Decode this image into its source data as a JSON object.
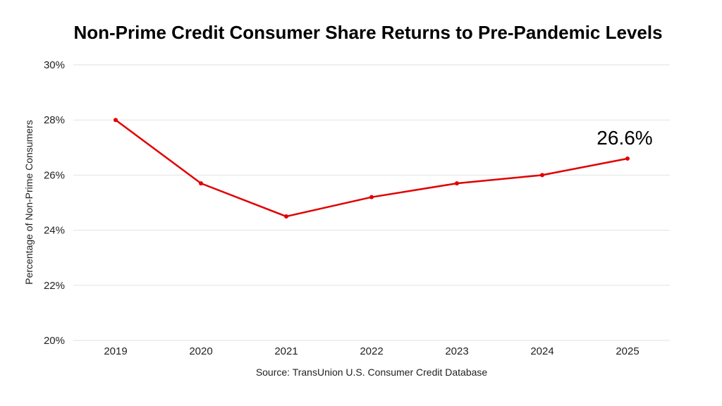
{
  "chart_data": {
    "type": "line",
    "title": "Non-Prime Credit Consumer Share Returns to Pre-Pandemic Levels",
    "xlabel": "",
    "ylabel": "Percentage of Non-Prime Consumers",
    "source": "Source: TransUnion U.S. Consumer Credit Database",
    "categories": [
      "2019",
      "2020",
      "2021",
      "2022",
      "2023",
      "2024",
      "2025"
    ],
    "values": [
      28.0,
      25.7,
      24.5,
      25.2,
      25.7,
      26.0,
      26.6
    ],
    "ylim": [
      20,
      30
    ],
    "yticks": [
      20,
      22,
      24,
      26,
      28,
      30
    ],
    "ytick_labels": [
      "20%",
      "22%",
      "24%",
      "26%",
      "28%",
      "30%"
    ],
    "grid": true,
    "line_color": "#e00000",
    "annotation": {
      "category": "2025",
      "text": "26.6%"
    }
  }
}
